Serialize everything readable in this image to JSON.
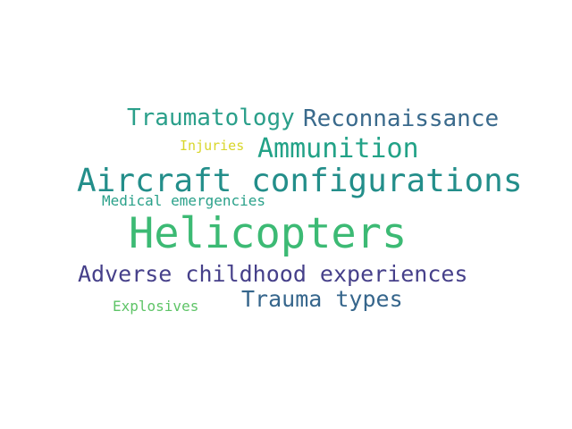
{
  "words": {
    "traumatology": {
      "text": "Traumatology",
      "color": "#2a9f8a"
    },
    "reconnaissance": {
      "text": "Reconnaissance",
      "color": "#3a6a8c"
    },
    "injuries": {
      "text": "Injuries",
      "color": "#d8d62a"
    },
    "ammunition": {
      "text": "Ammunition",
      "color": "#22a287"
    },
    "aircraft": {
      "text": "Aircraft configurations",
      "color": "#238e8a"
    },
    "medical": {
      "text": "Medical emergencies",
      "color": "#2aa18a"
    },
    "helicopters": {
      "text": "Helicopters",
      "color": "#3cba74"
    },
    "adverse": {
      "text": "Adverse childhood experiences",
      "color": "#46408a"
    },
    "trauma_types": {
      "text": "Trauma types",
      "color": "#36668c"
    },
    "explosives": {
      "text": "Explosives",
      "color": "#5ec467"
    }
  }
}
